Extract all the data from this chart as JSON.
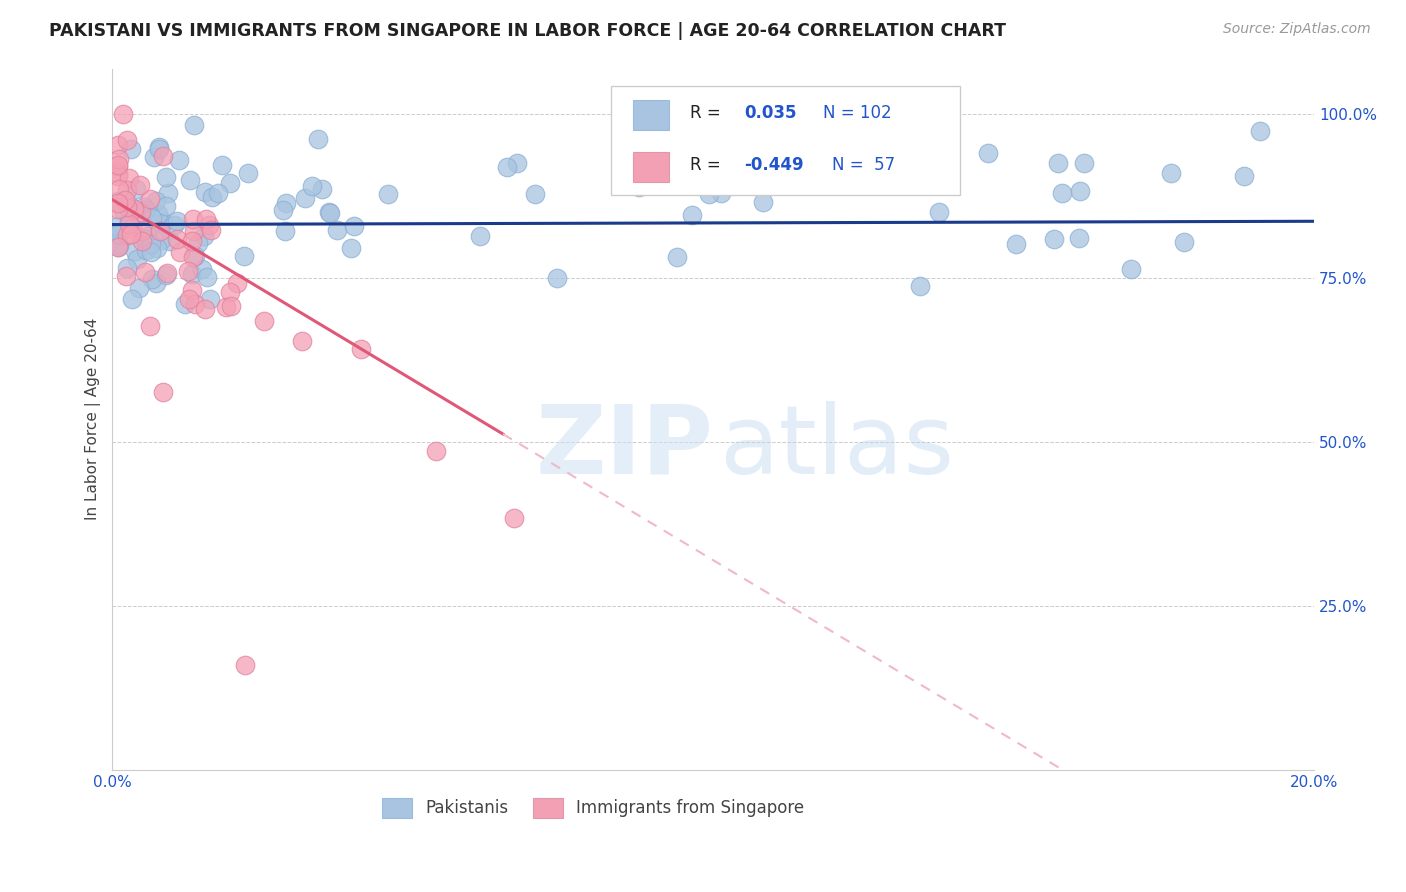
{
  "title": "PAKISTANI VS IMMIGRANTS FROM SINGAPORE IN LABOR FORCE | AGE 20-64 CORRELATION CHART",
  "source": "Source: ZipAtlas.com",
  "ylabel": "In Labor Force | Age 20-64",
  "xlim": [
    0.0,
    0.2
  ],
  "ylim": [
    0.0,
    1.07
  ],
  "blue_color": "#a8c4e0",
  "pink_color": "#f4a0b4",
  "blue_line_color": "#1a3a8a",
  "pink_line_color": "#e05878",
  "pink_dash_color": "#f0b8c8",
  "grid_color": "#cccccc",
  "tick_color": "#2255cc",
  "title_color": "#222222",
  "source_color": "#999999",
  "ylabel_color": "#444444",
  "legend_r1_label": "R =",
  "legend_r1_val": "0.035",
  "legend_r1_n": "N = 102",
  "legend_r2_label": "R =",
  "legend_r2_val": "-0.449",
  "legend_r2_n": "N =  57",
  "watermark_zip": "ZIP",
  "watermark_atlas": "atlas",
  "legend_label1": "Pakistanis",
  "legend_label2": "Immigrants from Singapore"
}
